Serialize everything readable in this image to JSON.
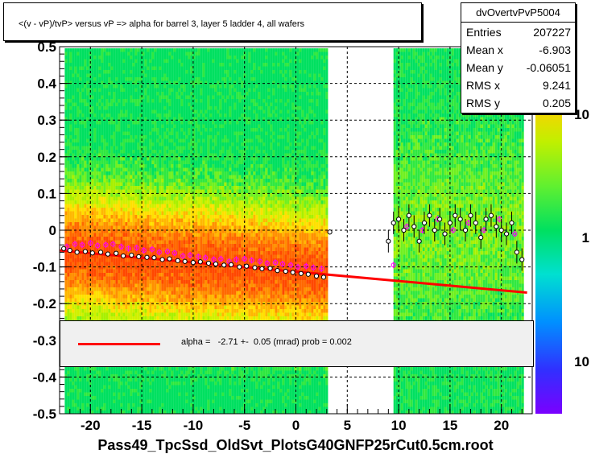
{
  "title": "<(v - vP)/tvP> versus   vP => alpha for barrel 3, layer 5 ladder 4, all wafers",
  "stats": {
    "name": "dvOvertvPvP5004",
    "rows": [
      {
        "label": "Entries",
        "value": "207227"
      },
      {
        "label": "Mean x",
        "value": "-6.903"
      },
      {
        "label": "Mean y",
        "value": "-0.06051"
      },
      {
        "label": "RMS x",
        "value": "9.241"
      },
      {
        "label": "RMS y",
        "value": "0.205"
      }
    ]
  },
  "fit": {
    "text": "alpha =   -2.71 +-  0.05 (mrad) prob = 0.002",
    "line_color": "#ff0000"
  },
  "xaxis_title": "Pass49_TpcSsd_OldSvt_PlotsG40GNFP25rCut0.5cm.root",
  "chart_data": {
    "type": "heatmap",
    "title": "<(v - vP)/tvP> versus   vP => alpha for barrel 3, layer 5 ladder 4, all wafers",
    "xlabel": "Pass49_TpcSsd_OldSvt_PlotsG40GNFP25rCut0.5cm.root",
    "ylabel": "",
    "xlim": [
      -23,
      23
    ],
    "ylim": [
      -0.5,
      0.5
    ],
    "xticks": [
      -20,
      -15,
      -10,
      -5,
      0,
      5,
      10,
      15,
      20
    ],
    "yticks": [
      -0.5,
      -0.4,
      -0.3,
      -0.2,
      -0.1,
      0,
      0.1,
      0.2,
      0.3,
      0.4,
      0.5
    ],
    "ytick_labels": [
      "-0.5",
      "-0.4",
      "-0.3",
      "-0.2",
      "-0.1",
      "0",
      "0.1",
      "0.2",
      "0.3",
      "0.4",
      "0.5"
    ],
    "grid": true,
    "log_z": true,
    "color_scale_labels": [
      "10",
      "1",
      "10"
    ],
    "data_regions_x": [
      [
        -22.5,
        3
      ],
      [
        9.5,
        22
      ]
    ],
    "fit_line": {
      "x": [
        -23,
        22.5
      ],
      "y": [
        -0.055,
        -0.17
      ]
    },
    "profile_black": {
      "x": [
        -22.6,
        -22,
        -21.3,
        -20.5,
        -19.8,
        -19,
        -18.3,
        -17.5,
        -16.8,
        -16,
        -15.3,
        -14.5,
        -13.8,
        -13,
        -12.3,
        -11.5,
        -10.8,
        -10,
        -9.3,
        -8.5,
        -7.8,
        -7,
        -6.3,
        -5.5,
        -4.8,
        -4,
        -3.3,
        -2.5,
        -1.8,
        -1,
        -0.3,
        0.5,
        1.2,
        2,
        2.7,
        3.3,
        9,
        9.5,
        10,
        10.5,
        11,
        11.5,
        12,
        12.5,
        13,
        13.5,
        14,
        14.5,
        15,
        15.5,
        16,
        16.5,
        17,
        17.5,
        18,
        18.5,
        19,
        19.5,
        20,
        20.5,
        21,
        21.5,
        22
      ],
      "y": [
        -0.05,
        -0.055,
        -0.06,
        -0.058,
        -0.062,
        -0.06,
        -0.065,
        -0.063,
        -0.07,
        -0.068,
        -0.072,
        -0.074,
        -0.075,
        -0.08,
        -0.078,
        -0.083,
        -0.085,
        -0.088,
        -0.086,
        -0.09,
        -0.092,
        -0.095,
        -0.094,
        -0.1,
        -0.098,
        -0.102,
        -0.105,
        -0.104,
        -0.11,
        -0.112,
        -0.115,
        -0.118,
        -0.12,
        -0.125,
        -0.128,
        -0.005,
        -0.03,
        0.02,
        0.03,
        0.0,
        0.04,
        0.01,
        -0.03,
        0.02,
        0.04,
        0.0,
        0.03,
        -0.01,
        0.02,
        0.04,
        0.03,
        0.0,
        0.04,
        0.02,
        -0.02,
        0.03,
        0.04,
        0.01,
        0.0,
        -0.01,
        0.02,
        -0.06,
        -0.08
      ]
    },
    "profile_magenta": {
      "x": [
        -22.3,
        -21.5,
        -20.8,
        -20,
        -19.3,
        -18.5,
        -17.8,
        -17,
        -16.3,
        -15.5,
        -14.8,
        -14,
        -13.3,
        -12.5,
        -11.8,
        -11,
        -10.3,
        -9.5,
        -8.8,
        -8,
        -7.3,
        -6.5,
        -5.8,
        -5,
        -4.3,
        -3.5,
        -2.8,
        -2,
        -1.3,
        -0.5,
        0.2,
        1,
        1.7,
        2.5,
        9.5,
        10.8,
        12.3,
        13.8,
        15.3,
        16.8,
        18.3,
        19.8,
        21.3
      ],
      "y": [
        -0.045,
        -0.038,
        -0.04,
        -0.035,
        -0.042,
        -0.04,
        -0.038,
        -0.045,
        -0.05,
        -0.048,
        -0.055,
        -0.052,
        -0.06,
        -0.058,
        -0.062,
        -0.07,
        -0.068,
        -0.072,
        -0.075,
        -0.08,
        -0.078,
        -0.085,
        -0.08,
        -0.078,
        -0.082,
        -0.085,
        -0.09,
        -0.088,
        -0.092,
        -0.095,
        -0.1,
        -0.098,
        -0.102,
        -0.105,
        -0.095,
        0.01,
        0.0,
        0.03,
        0.0,
        0.02,
        0.0,
        0.03,
        -0.01
      ]
    }
  }
}
